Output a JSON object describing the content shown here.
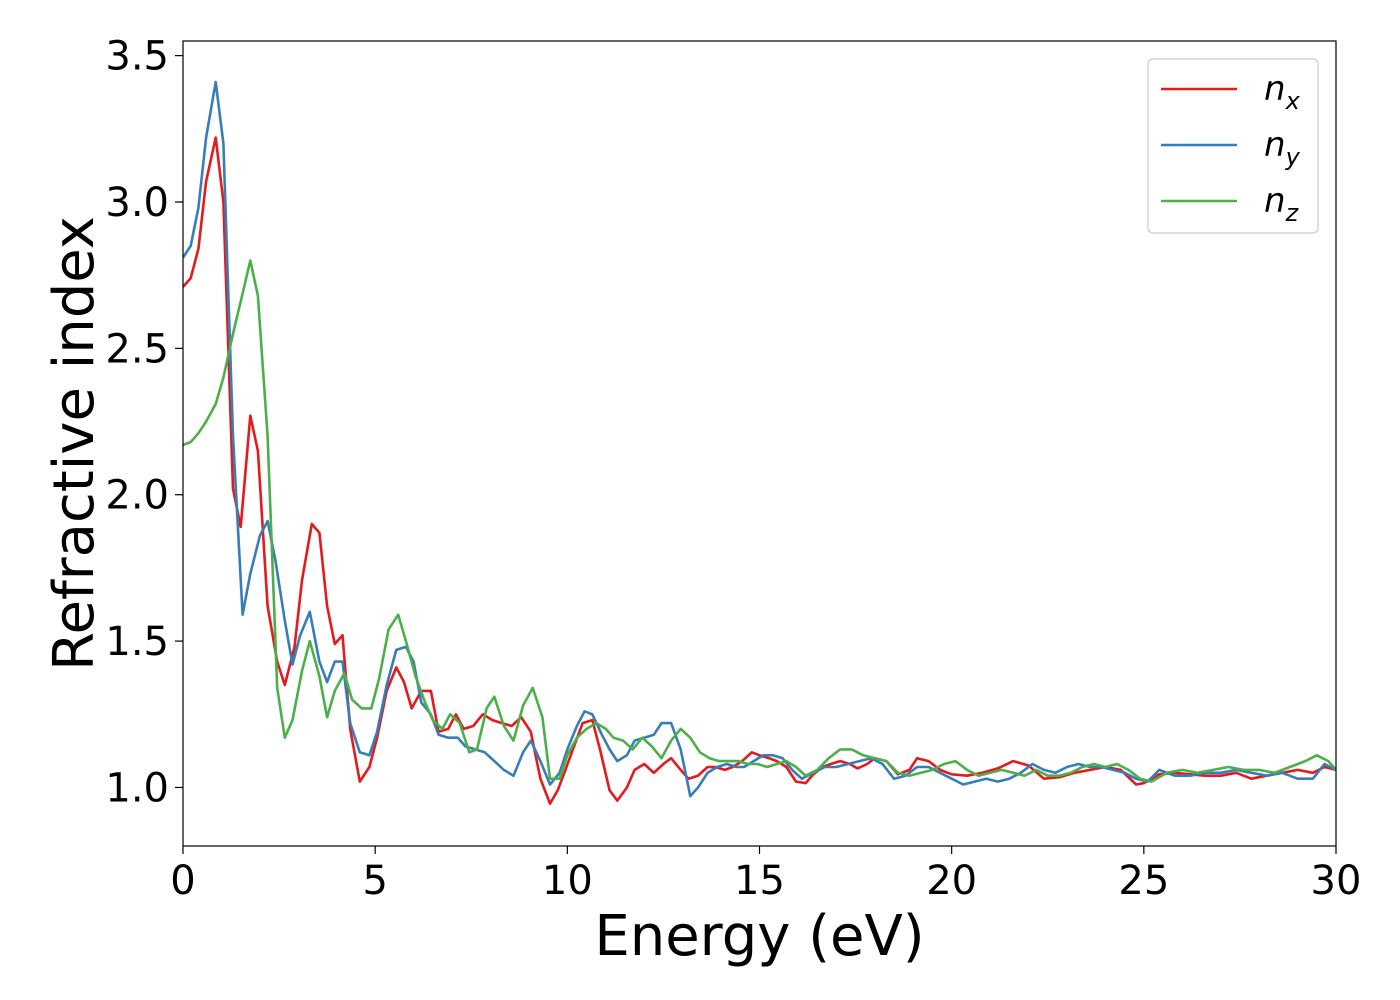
{
  "chart_data": {
    "type": "line",
    "xlabel": "Energy (eV)",
    "ylabel": "Refractive index",
    "xlim": [
      0,
      30
    ],
    "ylim": [
      0.8,
      3.55
    ],
    "xticks": [
      0,
      5,
      10,
      15,
      20,
      25,
      30
    ],
    "xtick_labels": [
      "0",
      "5",
      "10",
      "15",
      "20",
      "25",
      "30"
    ],
    "yticks": [
      1.0,
      1.5,
      2.0,
      2.5,
      3.0,
      3.5
    ],
    "ytick_labels": [
      "1.0",
      "1.5",
      "2.0",
      "2.5",
      "3.0",
      "3.5"
    ],
    "grid": false,
    "legend_position": "top-right",
    "series": [
      {
        "name": "n",
        "subscript": "x",
        "color": "#e41a1c",
        "x": [
          0,
          0.2,
          0.4,
          0.6,
          0.85,
          1.05,
          1.3,
          1.5,
          1.75,
          1.95,
          2.2,
          2.45,
          2.65,
          2.9,
          3.1,
          3.35,
          3.55,
          3.75,
          3.95,
          4.15,
          4.35,
          4.6,
          4.85,
          5.05,
          5.3,
          5.55,
          5.75,
          5.95,
          6.2,
          6.45,
          6.65,
          6.9,
          7.1,
          7.3,
          7.55,
          7.8,
          8.05,
          8.3,
          8.55,
          8.8,
          9.05,
          9.3,
          9.55,
          9.75,
          9.95,
          10.2,
          10.4,
          10.65,
          10.85,
          11.1,
          11.3,
          11.55,
          11.75,
          12.0,
          12.25,
          12.5,
          12.7,
          12.95,
          13.15,
          13.4,
          13.65,
          13.85,
          14.1,
          14.3,
          14.55,
          14.8,
          15.0,
          15.25,
          15.45,
          15.7,
          15.95,
          16.2,
          16.4,
          16.65,
          16.85,
          17.1,
          17.35,
          17.55,
          17.8,
          18.0,
          18.3,
          18.6,
          18.9,
          19.1,
          19.4,
          19.7,
          20.0,
          20.4,
          20.8,
          21.2,
          21.6,
          22.0,
          22.4,
          22.8,
          23.2,
          23.6,
          24.0,
          24.4,
          24.8,
          25.0,
          25.4,
          25.8,
          26.2,
          26.6,
          27.0,
          27.4,
          27.8,
          28.2,
          28.6,
          29.0,
          29.4,
          29.7,
          30.0
        ],
        "y": [
          2.71,
          2.74,
          2.84,
          3.07,
          3.22,
          3.0,
          2.02,
          1.89,
          2.27,
          2.15,
          1.62,
          1.43,
          1.35,
          1.48,
          1.71,
          1.9,
          1.87,
          1.62,
          1.49,
          1.52,
          1.2,
          1.02,
          1.07,
          1.17,
          1.33,
          1.41,
          1.36,
          1.27,
          1.33,
          1.33,
          1.19,
          1.2,
          1.25,
          1.2,
          1.21,
          1.25,
          1.23,
          1.22,
          1.21,
          1.24,
          1.19,
          1.03,
          0.945,
          0.99,
          1.06,
          1.15,
          1.22,
          1.23,
          1.13,
          0.99,
          0.955,
          1.0,
          1.06,
          1.08,
          1.05,
          1.08,
          1.1,
          1.06,
          1.03,
          1.04,
          1.07,
          1.07,
          1.06,
          1.07,
          1.09,
          1.12,
          1.11,
          1.1,
          1.09,
          1.07,
          1.02,
          1.015,
          1.045,
          1.07,
          1.08,
          1.09,
          1.08,
          1.065,
          1.08,
          1.1,
          1.09,
          1.045,
          1.06,
          1.1,
          1.09,
          1.06,
          1.045,
          1.04,
          1.05,
          1.065,
          1.09,
          1.075,
          1.03,
          1.035,
          1.05,
          1.06,
          1.07,
          1.06,
          1.01,
          1.015,
          1.045,
          1.05,
          1.045,
          1.04,
          1.04,
          1.05,
          1.03,
          1.04,
          1.05,
          1.06,
          1.05,
          1.07,
          1.06
        ]
      },
      {
        "name": "n",
        "subscript": "y",
        "color": "#377eb8",
        "x": [
          0,
          0.2,
          0.4,
          0.6,
          0.85,
          1.05,
          1.3,
          1.55,
          1.75,
          2.0,
          2.2,
          2.4,
          2.65,
          2.85,
          3.05,
          3.3,
          3.55,
          3.75,
          3.95,
          4.15,
          4.35,
          4.6,
          4.85,
          5.05,
          5.3,
          5.55,
          5.8,
          6.0,
          6.2,
          6.45,
          6.65,
          6.9,
          7.15,
          7.35,
          7.6,
          7.85,
          8.1,
          8.35,
          8.6,
          8.85,
          9.05,
          9.3,
          9.55,
          9.8,
          10.0,
          10.25,
          10.45,
          10.65,
          10.9,
          11.1,
          11.3,
          11.55,
          11.75,
          12.0,
          12.25,
          12.45,
          12.7,
          12.95,
          13.2,
          13.4,
          13.65,
          13.9,
          14.15,
          14.4,
          14.6,
          14.85,
          15.1,
          15.35,
          15.6,
          15.85,
          16.1,
          16.4,
          16.7,
          17.0,
          17.3,
          17.6,
          17.9,
          18.2,
          18.5,
          18.8,
          19.1,
          19.4,
          19.7,
          20.0,
          20.3,
          20.6,
          20.9,
          21.2,
          21.5,
          21.8,
          22.1,
          22.4,
          22.7,
          23.0,
          23.3,
          23.6,
          23.9,
          24.2,
          24.5,
          24.8,
          25.1,
          25.4,
          25.8,
          26.2,
          26.6,
          27.0,
          27.4,
          27.8,
          28.2,
          28.6,
          29.0,
          29.4,
          29.7,
          30.0
        ],
        "y": [
          2.81,
          2.85,
          2.98,
          3.22,
          3.41,
          3.2,
          2.2,
          1.59,
          1.73,
          1.86,
          1.91,
          1.78,
          1.57,
          1.42,
          1.52,
          1.6,
          1.43,
          1.36,
          1.43,
          1.43,
          1.22,
          1.12,
          1.11,
          1.19,
          1.35,
          1.47,
          1.48,
          1.43,
          1.29,
          1.25,
          1.18,
          1.17,
          1.17,
          1.14,
          1.13,
          1.12,
          1.09,
          1.06,
          1.04,
          1.12,
          1.16,
          1.09,
          1.01,
          1.05,
          1.13,
          1.21,
          1.26,
          1.25,
          1.18,
          1.13,
          1.09,
          1.11,
          1.16,
          1.17,
          1.18,
          1.22,
          1.22,
          1.13,
          0.97,
          1.0,
          1.05,
          1.07,
          1.08,
          1.07,
          1.07,
          1.09,
          1.11,
          1.11,
          1.1,
          1.06,
          1.03,
          1.05,
          1.07,
          1.07,
          1.08,
          1.09,
          1.1,
          1.08,
          1.03,
          1.04,
          1.07,
          1.07,
          1.05,
          1.03,
          1.01,
          1.02,
          1.03,
          1.02,
          1.03,
          1.05,
          1.08,
          1.06,
          1.05,
          1.07,
          1.08,
          1.07,
          1.07,
          1.06,
          1.05,
          1.03,
          1.02,
          1.06,
          1.04,
          1.04,
          1.05,
          1.05,
          1.06,
          1.05,
          1.04,
          1.05,
          1.03,
          1.03,
          1.08,
          1.06
        ]
      },
      {
        "name": "n",
        "subscript": "z",
        "color": "#4daf4a",
        "x": [
          0,
          0.2,
          0.4,
          0.6,
          0.85,
          1.05,
          1.3,
          1.5,
          1.75,
          1.95,
          2.2,
          2.45,
          2.65,
          2.85,
          3.1,
          3.3,
          3.55,
          3.75,
          3.95,
          4.2,
          4.4,
          4.65,
          4.9,
          5.1,
          5.35,
          5.6,
          5.8,
          6.05,
          6.3,
          6.5,
          6.75,
          6.95,
          7.2,
          7.45,
          7.65,
          7.9,
          8.1,
          8.35,
          8.6,
          8.85,
          9.1,
          9.35,
          9.55,
          9.8,
          10.0,
          10.25,
          10.5,
          10.75,
          11.0,
          11.2,
          11.45,
          11.7,
          11.95,
          12.2,
          12.45,
          12.7,
          12.95,
          13.2,
          13.45,
          13.7,
          13.95,
          14.2,
          14.45,
          14.7,
          14.95,
          15.2,
          15.45,
          15.7,
          15.95,
          16.2,
          16.5,
          16.8,
          17.1,
          17.4,
          17.7,
          18.0,
          18.3,
          18.6,
          18.9,
          19.2,
          19.5,
          19.8,
          20.1,
          20.4,
          20.7,
          21.0,
          21.3,
          21.6,
          21.9,
          22.2,
          22.5,
          22.8,
          23.1,
          23.4,
          23.7,
          24.0,
          24.3,
          24.6,
          24.9,
          25.2,
          25.6,
          26.0,
          26.4,
          26.8,
          27.2,
          27.6,
          28.0,
          28.4,
          28.8,
          29.2,
          29.5,
          29.8,
          30.0
        ],
        "y": [
          2.17,
          2.18,
          2.21,
          2.25,
          2.31,
          2.4,
          2.55,
          2.66,
          2.8,
          2.68,
          2.2,
          1.34,
          1.17,
          1.23,
          1.4,
          1.5,
          1.38,
          1.24,
          1.33,
          1.39,
          1.3,
          1.27,
          1.27,
          1.37,
          1.54,
          1.59,
          1.5,
          1.38,
          1.29,
          1.23,
          1.2,
          1.25,
          1.22,
          1.12,
          1.13,
          1.27,
          1.31,
          1.21,
          1.16,
          1.28,
          1.34,
          1.24,
          1.03,
          1.03,
          1.11,
          1.17,
          1.2,
          1.22,
          1.2,
          1.17,
          1.16,
          1.13,
          1.17,
          1.14,
          1.1,
          1.16,
          1.2,
          1.17,
          1.12,
          1.1,
          1.09,
          1.09,
          1.09,
          1.08,
          1.08,
          1.07,
          1.08,
          1.09,
          1.07,
          1.04,
          1.06,
          1.1,
          1.13,
          1.13,
          1.11,
          1.1,
          1.09,
          1.05,
          1.04,
          1.05,
          1.06,
          1.08,
          1.09,
          1.06,
          1.04,
          1.05,
          1.06,
          1.05,
          1.04,
          1.06,
          1.04,
          1.04,
          1.05,
          1.07,
          1.08,
          1.07,
          1.08,
          1.06,
          1.03,
          1.02,
          1.05,
          1.06,
          1.05,
          1.06,
          1.07,
          1.06,
          1.06,
          1.05,
          1.07,
          1.09,
          1.11,
          1.09,
          1.06
        ]
      }
    ]
  }
}
